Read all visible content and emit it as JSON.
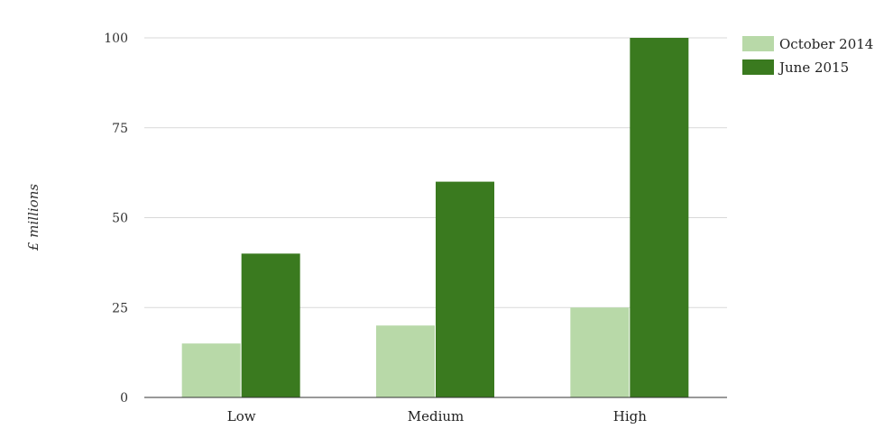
{
  "chart_data": {
    "type": "bar",
    "title": "",
    "xlabel": "",
    "ylabel": "£ millions",
    "categories": [
      "Low",
      "Medium",
      "High"
    ],
    "series": [
      {
        "name": "October 2014",
        "values": [
          15,
          20,
          25
        ],
        "color": "#b8d9a8"
      },
      {
        "name": "June 2015",
        "values": [
          40,
          60,
          100
        ],
        "color": "#3a7a1f"
      }
    ],
    "ylim": [
      0,
      100
    ],
    "yticks": [
      0,
      25,
      50,
      75,
      100
    ],
    "grid": true,
    "legend_position": "top-right"
  }
}
